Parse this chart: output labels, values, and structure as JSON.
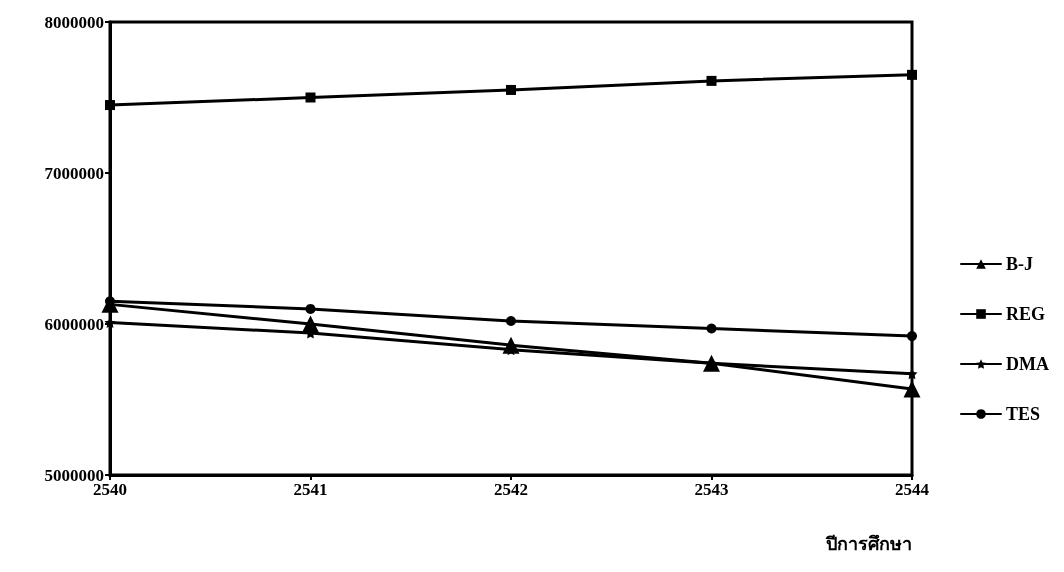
{
  "chart_data": {
    "type": "line",
    "xlabel": "ปีการศึกษา",
    "categories": [
      "2540",
      "2541",
      "2542",
      "2543",
      "2544"
    ],
    "ylim": [
      5000000,
      8000000
    ],
    "yticks": [
      5000000,
      6000000,
      7000000,
      8000000
    ],
    "grid": false,
    "legend": "right",
    "line_style": "solid",
    "series": [
      {
        "name": "B-J",
        "color": "#000000",
        "marker": "triangle",
        "values": [
          6130000,
          6000000,
          5860000,
          5740000,
          5570000
        ]
      },
      {
        "name": "REG",
        "color": "#000000",
        "marker": "square",
        "values": [
          7450000,
          7500000,
          7550000,
          7610000,
          7650000
        ]
      },
      {
        "name": "DMA",
        "color": "#000000",
        "marker": "star",
        "values": [
          6010000,
          5940000,
          5830000,
          5740000,
          5670000
        ]
      },
      {
        "name": "TES",
        "color": "#000000",
        "marker": "circle",
        "values": [
          6150000,
          6100000,
          6020000,
          5970000,
          5920000
        ]
      }
    ]
  }
}
